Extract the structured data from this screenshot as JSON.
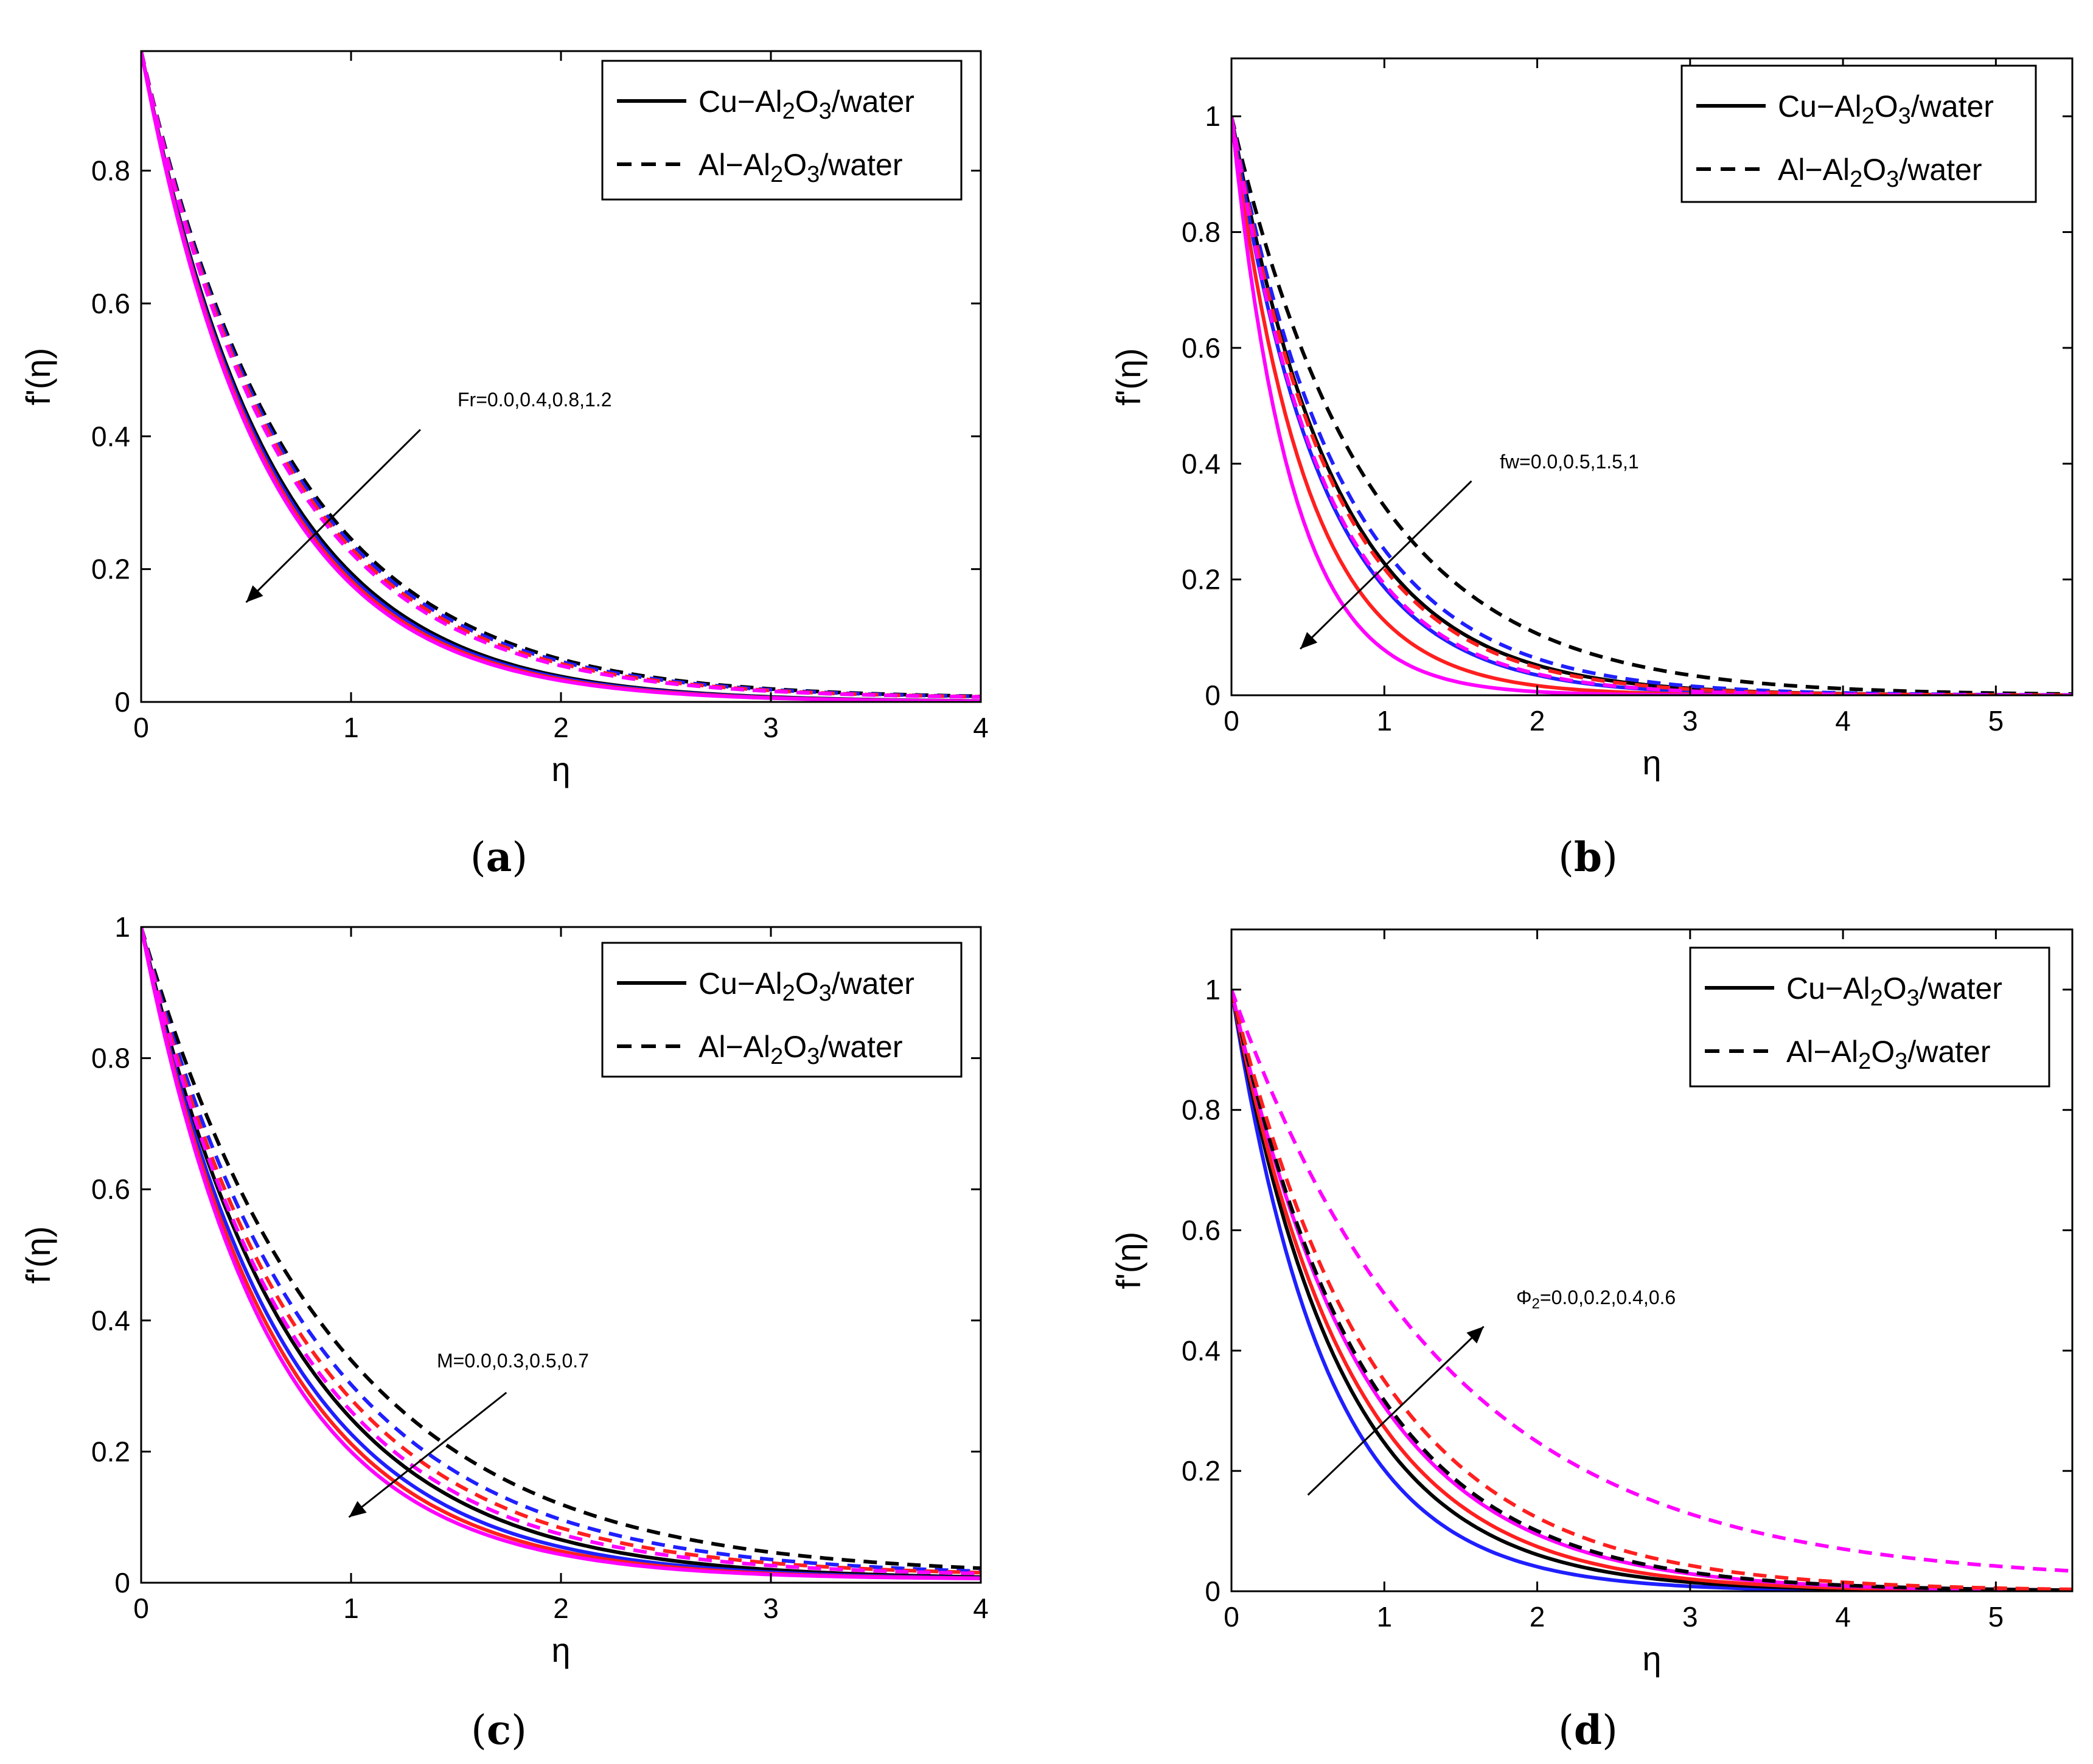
{
  "chart_data": [
    {
      "id": "a",
      "type": "line",
      "panel_label": "a",
      "xlabel": "η",
      "ylabel": "f'(η)",
      "xlim": [
        0,
        4
      ],
      "ylim": [
        0,
        0.98
      ],
      "xticks": [
        0,
        1,
        2,
        3,
        4
      ],
      "yticks": [
        0,
        0.2,
        0.4,
        0.6,
        0.8
      ],
      "legend": {
        "position": "top-right",
        "entries": [
          {
            "style": "solid",
            "label_parts": [
              "Cu−Al",
              "2",
              "O",
              "3",
              "/water"
            ]
          },
          {
            "style": "dashed",
            "label_parts": [
              "Al−Al",
              "2",
              "O",
              "3",
              "/water"
            ]
          }
        ]
      },
      "annotation": {
        "text": "Fr=0.0,0.4,0.8,1.2",
        "arrow_from": [
          1.33,
          0.41
        ],
        "arrow_to": [
          0.5,
          0.15
        ]
      },
      "series": [
        {
          "name": "Cu-Al2O3/water Fr=0.0",
          "style": "solid",
          "color": "#000000",
          "decay": 1.62,
          "y0": 0.98,
          "yinf": 0
        },
        {
          "name": "Cu-Al2O3/water Fr=0.4",
          "style": "solid",
          "color": "#1f1fff",
          "decay": 1.65,
          "y0": 0.98,
          "yinf": 0
        },
        {
          "name": "Cu-Al2O3/water Fr=0.8",
          "style": "solid",
          "color": "#ff1f1f",
          "decay": 1.68,
          "y0": 0.98,
          "yinf": 0
        },
        {
          "name": "Cu-Al2O3/water Fr=1.2",
          "style": "solid",
          "color": "#ff00ff",
          "decay": 1.71,
          "y0": 0.98,
          "yinf": 0
        },
        {
          "name": "Al-Al2O3/water Fr=0.0",
          "style": "dashed",
          "color": "#000000",
          "decay": 1.4,
          "y0": 0.98,
          "yinf": 0.005
        },
        {
          "name": "Al-Al2O3/water Fr=0.4",
          "style": "dashed",
          "color": "#1f1fff",
          "decay": 1.43,
          "y0": 0.98,
          "yinf": 0.005
        },
        {
          "name": "Al-Al2O3/water Fr=0.8",
          "style": "dashed",
          "color": "#ff1f1f",
          "decay": 1.46,
          "y0": 0.98,
          "yinf": 0.005
        },
        {
          "name": "Al-Al2O3/water Fr=1.2",
          "style": "dashed",
          "color": "#ff00ff",
          "decay": 1.49,
          "y0": 0.98,
          "yinf": 0.005
        }
      ]
    },
    {
      "id": "b",
      "type": "line",
      "panel_label": "b",
      "xlabel": "η",
      "ylabel": "f'(η)",
      "xlim": [
        0,
        5.5
      ],
      "ylim": [
        0,
        1.1
      ],
      "xticks": [
        0,
        1,
        2,
        3,
        4,
        5
      ],
      "yticks": [
        0,
        0.2,
        0.4,
        0.6,
        0.8,
        1
      ],
      "legend": {
        "position": "top-right",
        "entries": [
          {
            "style": "solid",
            "label_parts": [
              "Cu−Al",
              "2",
              "O",
              "3",
              "/water"
            ]
          },
          {
            "style": "dashed",
            "label_parts": [
              "Al−Al",
              "2",
              "O",
              "3",
              "/water"
            ]
          }
        ]
      },
      "annotation": {
        "text": "fw=0.0,0.5,1.5,1",
        "arrow_from": [
          1.57,
          0.37
        ],
        "arrow_to": [
          0.45,
          0.08
        ]
      },
      "series": [
        {
          "name": "Cu-Al2O3/water fw=0.0",
          "style": "solid",
          "color": "#000000",
          "decay": 1.48,
          "y0": 1.0,
          "yinf": 0
        },
        {
          "name": "Cu-Al2O3/water fw=0.5",
          "style": "solid",
          "color": "#1f1fff",
          "decay": 1.68,
          "y0": 1.0,
          "yinf": 0
        },
        {
          "name": "Cu-Al2O3/water fw=1.5",
          "style": "solid",
          "color": "#ff1f1f",
          "decay": 2.05,
          "y0": 1.0,
          "yinf": 0
        },
        {
          "name": "Cu-Al2O3/water fw=1",
          "style": "solid",
          "color": "#ff00ff",
          "decay": 2.55,
          "y0": 1.0,
          "yinf": 0
        },
        {
          "name": "Al-Al2O3/water fw=0.0",
          "style": "dashed",
          "color": "#000000",
          "decay": 1.12,
          "y0": 1.0,
          "yinf": 0
        },
        {
          "name": "Al-Al2O3/water fw=0.5",
          "style": "dashed",
          "color": "#1f1fff",
          "decay": 1.38,
          "y0": 1.0,
          "yinf": 0
        },
        {
          "name": "Al-Al2O3/water fw=1.5",
          "style": "dashed",
          "color": "#ff1f1f",
          "decay": 1.52,
          "y0": 1.0,
          "yinf": 0
        },
        {
          "name": "Al-Al2O3/water fw=1",
          "style": "dashed",
          "color": "#ff00ff",
          "decay": 1.65,
          "y0": 1.0,
          "yinf": 0
        }
      ]
    },
    {
      "id": "c",
      "type": "line",
      "panel_label": "c",
      "xlabel": "η",
      "ylabel": "f'(η)",
      "xlim": [
        0,
        4
      ],
      "ylim": [
        0,
        1.0
      ],
      "xticks": [
        0,
        1,
        2,
        3,
        4
      ],
      "yticks": [
        0,
        0.2,
        0.4,
        0.6,
        0.8,
        1
      ],
      "legend": {
        "position": "top-right",
        "entries": [
          {
            "style": "solid",
            "label_parts": [
              "Cu−Al",
              "2",
              "O",
              "3",
              "/water"
            ]
          },
          {
            "style": "dashed",
            "label_parts": [
              "Al−Al",
              "2",
              "O",
              "3",
              "/water"
            ]
          }
        ]
      },
      "annotation": {
        "text": "M=0.0,0.3,0.5,0.7",
        "arrow_from": [
          1.74,
          0.29
        ],
        "arrow_to": [
          0.99,
          0.1
        ]
      },
      "series": [
        {
          "name": "Cu-Al2O3/water M=0.0",
          "style": "solid",
          "color": "#000000",
          "decay": 1.4,
          "y0": 1.0,
          "yinf": 0.005
        },
        {
          "name": "Cu-Al2O3/water M=0.3",
          "style": "solid",
          "color": "#1f1fff",
          "decay": 1.5,
          "y0": 1.0,
          "yinf": 0.005
        },
        {
          "name": "Cu-Al2O3/water M=0.5",
          "style": "solid",
          "color": "#ff1f1f",
          "decay": 1.57,
          "y0": 1.0,
          "yinf": 0.005
        },
        {
          "name": "Cu-Al2O3/water M=0.7",
          "style": "solid",
          "color": "#ff00ff",
          "decay": 1.63,
          "y0": 1.0,
          "yinf": 0.005
        },
        {
          "name": "Al-Al2O3/water M=0.0",
          "style": "dashed",
          "color": "#000000",
          "decay": 1.1,
          "y0": 1.0,
          "yinf": 0.01
        },
        {
          "name": "Al-Al2O3/water M=0.3",
          "style": "dashed",
          "color": "#1f1fff",
          "decay": 1.22,
          "y0": 1.0,
          "yinf": 0.01
        },
        {
          "name": "Al-Al2O3/water M=0.5",
          "style": "dashed",
          "color": "#ff1f1f",
          "decay": 1.3,
          "y0": 1.0,
          "yinf": 0.01
        },
        {
          "name": "Al-Al2O3/water M=0.7",
          "style": "dashed",
          "color": "#ff00ff",
          "decay": 1.37,
          "y0": 1.0,
          "yinf": 0.01
        }
      ]
    },
    {
      "id": "d",
      "type": "line",
      "panel_label": "d",
      "xlabel": "η",
      "ylabel": "f'(η)",
      "xlim": [
        0,
        5.5
      ],
      "ylim": [
        0,
        1.1
      ],
      "xticks": [
        0,
        1,
        2,
        3,
        4,
        5
      ],
      "yticks": [
        0,
        0.2,
        0.4,
        0.6,
        0.8,
        1
      ],
      "legend": {
        "position": "top-right",
        "entries": [
          {
            "style": "solid",
            "label_parts": [
              "Cu−Al",
              "2",
              "O",
              "3",
              "/water"
            ]
          },
          {
            "style": "dashed",
            "label_parts": [
              "Al−Al",
              "2",
              "O",
              "3",
              "/water"
            ]
          }
        ]
      },
      "annotation": {
        "text_parts": [
          "Φ",
          "2",
          "=0.0,0.2,0.4,0.6"
        ],
        "arrow_from": [
          0.5,
          0.16
        ],
        "arrow_to": [
          1.65,
          0.44
        ]
      },
      "series": [
        {
          "name": "Cu-Al2O3/water Φ2=0.0",
          "style": "solid",
          "color": "#1f1fff",
          "decay": 1.6,
          "y0": 1.0,
          "yinf": 0
        },
        {
          "name": "Cu-Al2O3/water Φ2=0.2",
          "style": "solid",
          "color": "#000000",
          "decay": 1.4,
          "y0": 1.0,
          "yinf": 0
        },
        {
          "name": "Cu-Al2O3/water Φ2=0.4",
          "style": "solid",
          "color": "#ff1f1f",
          "decay": 1.3,
          "y0": 1.0,
          "yinf": 0
        },
        {
          "name": "Cu-Al2O3/water Φ2=0.6",
          "style": "solid",
          "color": "#ff00ff",
          "decay": 1.18,
          "y0": 1.0,
          "yinf": 0
        },
        {
          "name": "Al-Al2O3/water Φ2=0.0",
          "style": "dashed",
          "color": "#1f1fff",
          "decay": 1.15,
          "y0": 1.0,
          "yinf": 0
        },
        {
          "name": "Al-Al2O3/water Φ2=0.2",
          "style": "dashed",
          "color": "#000000",
          "decay": 1.15,
          "y0": 1.0,
          "yinf": 0
        },
        {
          "name": "Al-Al2O3/water Φ2=0.4",
          "style": "dashed",
          "color": "#ff1f1f",
          "decay": 1.05,
          "y0": 1.0,
          "yinf": 0
        },
        {
          "name": "Al-Al2O3/water Φ2=0.6",
          "style": "dashed",
          "color": "#ff00ff",
          "decay": 0.72,
          "y0": 1.0,
          "yinf": 0.015
        }
      ]
    }
  ]
}
